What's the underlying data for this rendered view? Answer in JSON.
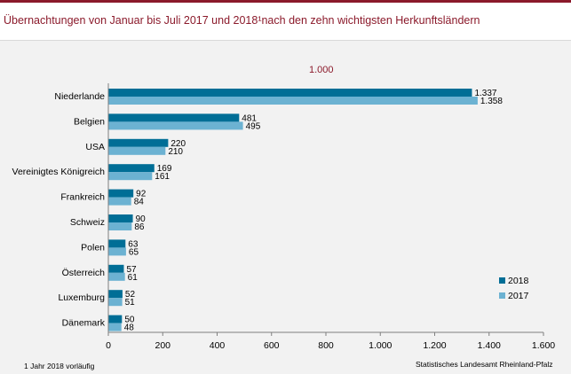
{
  "title": "Übernachtungen von Januar bis Juli 2017 und 2018¹nach den zehn wichtigsten Herkunftsländern",
  "footnote": "1 Jahr 2018 vorläufig",
  "source": "Statistisches Landesamt Rheinland-Pfalz",
  "colors": {
    "title": "#8b1a2b",
    "series2018": "#006e96",
    "series2017": "#6cb2d2",
    "background": "#f2f2f2"
  },
  "chart_data": {
    "type": "bar",
    "orientation": "horizontal",
    "unit_label": "1.000",
    "categories": [
      "Niederlande",
      "Belgien",
      "USA",
      "Vereinigtes Königreich",
      "Frankreich",
      "Schweiz",
      "Polen",
      "Österreich",
      "Luxemburg",
      "Dänemark"
    ],
    "series": [
      {
        "name": "2018",
        "values": [
          1337,
          481,
          220,
          169,
          92,
          90,
          63,
          57,
          52,
          50
        ],
        "labels": [
          "1.337",
          "481",
          "220",
          "169",
          "92",
          "90",
          "63",
          "57",
          "52",
          "50"
        ]
      },
      {
        "name": "2017",
        "values": [
          1358,
          495,
          210,
          161,
          84,
          86,
          65,
          61,
          51,
          48
        ],
        "labels": [
          "1.358",
          "495",
          "210",
          "161",
          "84",
          "86",
          "65",
          "61",
          "51",
          "48"
        ]
      }
    ],
    "xlim": [
      0,
      1600
    ],
    "xticks": [
      0,
      200,
      400,
      600,
      800,
      1000,
      1200,
      1400,
      1600
    ],
    "xtick_labels": [
      "0",
      "200",
      "400",
      "600",
      "800",
      "1.000",
      "1.200",
      "1.400",
      "1.600"
    ],
    "legend": [
      "2018",
      "2017"
    ],
    "legend_position": "bottom-right",
    "grid": false
  }
}
